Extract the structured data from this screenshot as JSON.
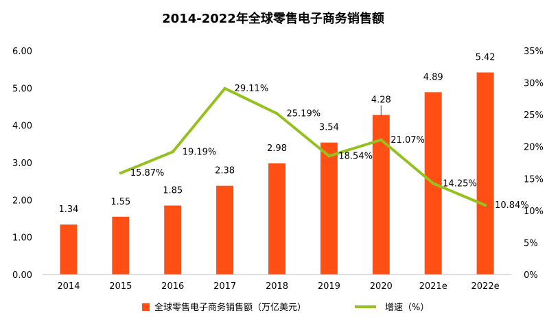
{
  "chart_data": {
    "type": "bar",
    "title": "2014-2022年全球零售电子商务销售额",
    "categories": [
      "2014",
      "2015",
      "2016",
      "2017",
      "2018",
      "2019",
      "2020",
      "2021e",
      "2022e"
    ],
    "series": [
      {
        "name": "全球零售电子商务销售额（万亿美元）",
        "type": "bar",
        "axis": "left",
        "color": "#ff4f14",
        "values": [
          1.34,
          1.55,
          1.85,
          2.38,
          2.98,
          3.54,
          4.28,
          4.89,
          5.42
        ],
        "labels": [
          "1.34",
          "1.55",
          "1.85",
          "2.38",
          "2.98",
          "3.54",
          "4.28",
          "4.89",
          "5.42"
        ]
      },
      {
        "name": "增速（%）",
        "type": "line",
        "axis": "right",
        "color": "#95c11f",
        "values": [
          null,
          15.87,
          19.19,
          29.11,
          25.19,
          18.54,
          21.07,
          14.25,
          10.84
        ],
        "labels": [
          "",
          "15.87%",
          "19.19%",
          "29.11%",
          "25.19%",
          "18.54%",
          "21.07%",
          "14.25%",
          "10.84%"
        ]
      }
    ],
    "left_axis": {
      "min": 0,
      "max": 6,
      "ticks": [
        0,
        1,
        2,
        3,
        4,
        5,
        6
      ],
      "tick_labels": [
        "0.00",
        "1.00",
        "2.00",
        "3.00",
        "4.00",
        "5.00",
        "6.00"
      ]
    },
    "right_axis": {
      "min": 0,
      "max": 35,
      "ticks": [
        0,
        5,
        10,
        15,
        20,
        25,
        30,
        35
      ],
      "tick_labels": [
        "0%",
        "5%",
        "10%",
        "15%",
        "20%",
        "25%",
        "30%",
        "35%"
      ]
    },
    "grid": false,
    "legend_position": "bottom-center"
  }
}
